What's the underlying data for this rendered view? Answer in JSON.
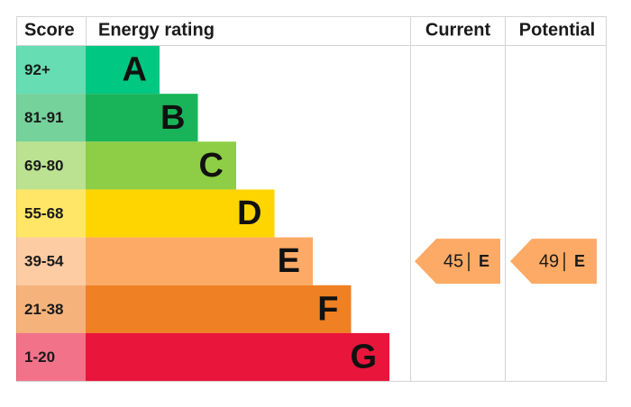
{
  "header": {
    "score": "Score",
    "energy_rating": "Energy rating",
    "current": "Current",
    "potential": "Potential"
  },
  "bands": [
    {
      "score": "92+",
      "rating": "A",
      "color": "#00c781"
    },
    {
      "score": "81-91",
      "rating": "B",
      "color": "#19b459"
    },
    {
      "score": "69-80",
      "rating": "C",
      "color": "#8dce46"
    },
    {
      "score": "55-68",
      "rating": "D",
      "color": "#ffd500"
    },
    {
      "score": "39-54",
      "rating": "E",
      "color": "#fcaa65"
    },
    {
      "score": "21-38",
      "rating": "F",
      "color": "#ef8023"
    },
    {
      "score": "1-20",
      "rating": "G",
      "color": "#e9153b"
    }
  ],
  "current": {
    "score": 45,
    "rating": "E"
  },
  "potential": {
    "score": 49,
    "rating": "E"
  }
}
